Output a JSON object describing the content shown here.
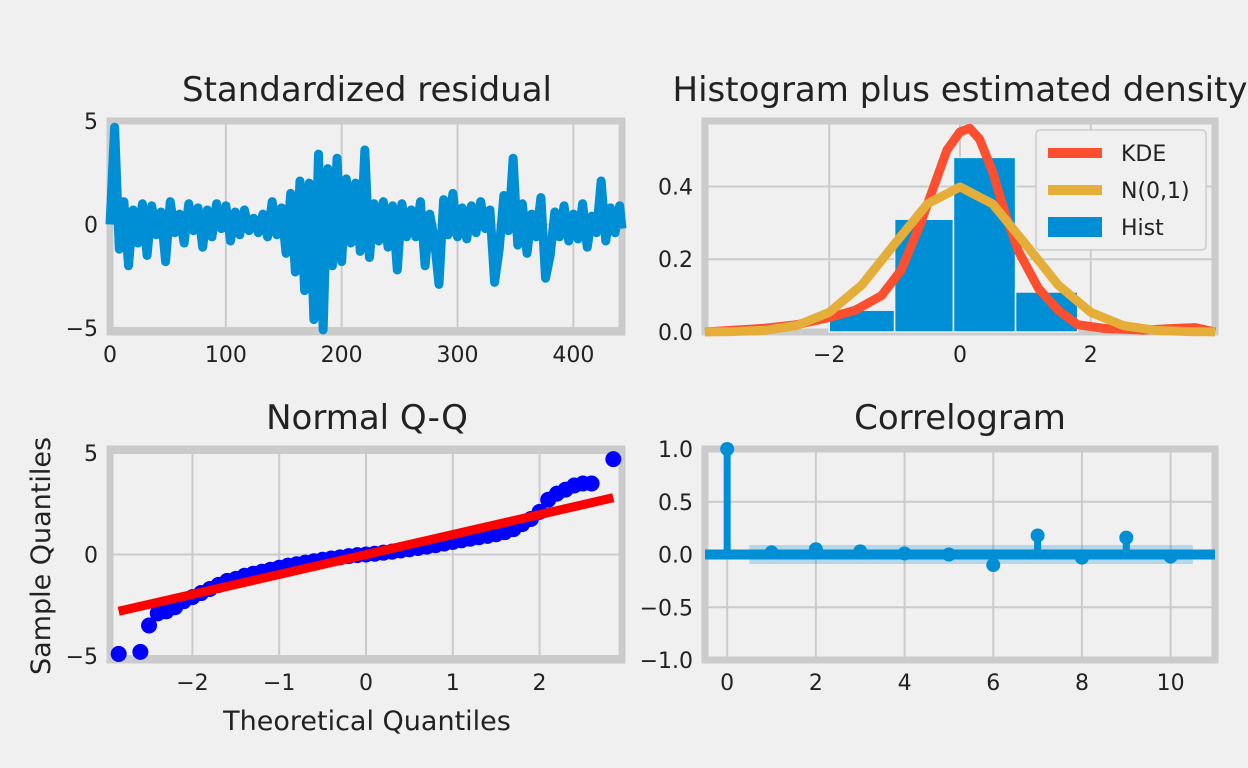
{
  "chart_data": [
    {
      "type": "line",
      "title": "Standardized residual",
      "xlabel": "",
      "ylabel": "",
      "xlim": [
        0,
        442
      ],
      "ylim": [
        -5.2,
        5.0
      ],
      "xticks": [
        0,
        100,
        200,
        300,
        400
      ],
      "yticks": [
        -5,
        0,
        5
      ],
      "grid": true,
      "color": "#008fd5",
      "series": [
        {
          "x": [
            0,
            4,
            8,
            12,
            16,
            20,
            24,
            28,
            32,
            36,
            40,
            44,
            48,
            52,
            56,
            60,
            64,
            68,
            72,
            76,
            80,
            84,
            88,
            92,
            96,
            100,
            104,
            108,
            112,
            116,
            120,
            124,
            128,
            132,
            136,
            140,
            144,
            148,
            152,
            156,
            160,
            164,
            168,
            172,
            176,
            180,
            184,
            188,
            192,
            196,
            200,
            204,
            208,
            212,
            216,
            220,
            224,
            228,
            232,
            236,
            240,
            244,
            248,
            252,
            256,
            260,
            264,
            268,
            272,
            276,
            280,
            284,
            288,
            292,
            296,
            300,
            304,
            308,
            312,
            316,
            320,
            324,
            328,
            332,
            336,
            340,
            344,
            348,
            352,
            356,
            360,
            364,
            368,
            372,
            376,
            380,
            384,
            388,
            392,
            396,
            400,
            404,
            408,
            412,
            416,
            420,
            424,
            428,
            432,
            436,
            440,
            442
          ],
          "values": [
            0,
            4.7,
            -1.2,
            1.1,
            -2,
            0.7,
            -0.9,
            1.0,
            -1.5,
            0.9,
            -0.5,
            0.6,
            -1.8,
            1.1,
            -0.4,
            0.5,
            -0.9,
            1.0,
            -0.3,
            0.8,
            -1.1,
            0.7,
            -0.6,
            1.0,
            -0.2,
            0.9,
            -0.8,
            0.6,
            -0.5,
            0.7,
            -0.3,
            0.3,
            -0.4,
            0.5,
            -0.6,
            1.1,
            -0.5,
            0.8,
            -1.4,
            1.5,
            -2.3,
            2.1,
            -3.2,
            2.0,
            -4.6,
            3.4,
            -5.1,
            2.7,
            -2.0,
            3.2,
            -1.8,
            2.2,
            -0.9,
            2.0,
            -1.3,
            3.6,
            -1.6,
            1.0,
            -0.8,
            1.1,
            -1.1,
            0.9,
            -2.2,
            1.0,
            -0.6,
            0.7,
            -0.6,
            1.1,
            -2.0,
            0.5,
            -0.7,
            -2.9,
            1.2,
            -0.5,
            1.5,
            -0.6,
            0.8,
            -0.7,
            0.9,
            -0.4,
            1.1,
            -0.2,
            0.7,
            -2.8,
            -1.2,
            1.4,
            -0.3,
            3.2,
            -1.0,
            1.0,
            -1.4,
            0.5,
            -0.6,
            1.3,
            -2.6,
            -1.5,
            0.6,
            -0.6,
            0.9,
            -0.8,
            0.5,
            -0.7,
            1.0,
            -1.1,
            0.4,
            -0.4,
            2.1,
            -0.8,
            0.8,
            -0.4,
            0.9,
            -0.2
          ]
        }
      ]
    },
    {
      "type": "bar",
      "title": "Histogram plus estimated density",
      "xlabel": "",
      "ylabel": "",
      "xlim": [
        -3.9,
        3.9
      ],
      "ylim": [
        0,
        0.58
      ],
      "xticks": [
        -2,
        0,
        2
      ],
      "yticks": [
        0.0,
        0.2,
        0.4
      ],
      "ytick_labels": [
        "0.0",
        "0.2",
        "0.4"
      ],
      "grid": true,
      "legend_position": "top-right",
      "bins": [
        {
          "x0": -2.0,
          "x1": -1.0,
          "value": 0.06
        },
        {
          "x0": -1.0,
          "x1": -0.1,
          "value": 0.31
        },
        {
          "x0": -0.1,
          "x1": 0.85,
          "value": 0.48
        },
        {
          "x0": 0.85,
          "x1": 1.8,
          "value": 0.11
        }
      ],
      "series": [
        {
          "name": "KDE",
          "color": "#fc4f30",
          "x": [
            -3.9,
            -3.0,
            -2.5,
            -2.0,
            -1.6,
            -1.2,
            -0.9,
            -0.6,
            -0.4,
            -0.2,
            0.0,
            0.15,
            0.3,
            0.5,
            0.7,
            0.9,
            1.2,
            1.5,
            1.8,
            2.2,
            2.8,
            3.3,
            3.6,
            3.9
          ],
          "values": [
            0.0,
            0.01,
            0.02,
            0.04,
            0.06,
            0.1,
            0.17,
            0.3,
            0.4,
            0.5,
            0.55,
            0.56,
            0.53,
            0.44,
            0.32,
            0.22,
            0.12,
            0.06,
            0.02,
            0.01,
            0.005,
            0.01,
            0.012,
            0.0
          ]
        },
        {
          "name": "N(0,1)",
          "color": "#e5ae38",
          "x": [
            -3.9,
            -3.5,
            -3.0,
            -2.5,
            -2.0,
            -1.5,
            -1.0,
            -0.5,
            0.0,
            0.5,
            1.0,
            1.5,
            2.0,
            2.5,
            3.0,
            3.5,
            3.9
          ],
          "values": [
            0.0002,
            0.0009,
            0.0044,
            0.0175,
            0.054,
            0.1295,
            0.242,
            0.352,
            0.399,
            0.352,
            0.242,
            0.1295,
            0.054,
            0.0175,
            0.0044,
            0.0009,
            0.0002
          ]
        },
        {
          "name": "Hist",
          "color": "#008fd5"
        }
      ]
    },
    {
      "type": "scatter",
      "title": "Normal Q-Q",
      "xlabel": "Theoretical Quantiles",
      "ylabel": "Sample Quantiles",
      "xlim": [
        -2.95,
        2.95
      ],
      "ylim": [
        -5.2,
        5.2
      ],
      "xticks": [
        -2,
        -1,
        0,
        1,
        2
      ],
      "yticks": [
        -5,
        0,
        5
      ],
      "grid": true,
      "marker_color": "#0000ff",
      "line_color": "#ff0000",
      "reference_line": {
        "x": [
          -2.85,
          2.85
        ],
        "y": [
          -2.8,
          2.8
        ]
      },
      "points": {
        "x": [
          -2.85,
          -2.6,
          -2.5,
          -2.4,
          -2.3,
          -2.2,
          -2.1,
          -2.0,
          -1.9,
          -1.8,
          -1.7,
          -1.6,
          -1.5,
          -1.4,
          -1.3,
          -1.2,
          -1.1,
          -1.0,
          -0.9,
          -0.8,
          -0.7,
          -0.6,
          -0.5,
          -0.4,
          -0.3,
          -0.2,
          -0.1,
          0.0,
          0.1,
          0.2,
          0.3,
          0.4,
          0.5,
          0.6,
          0.7,
          0.8,
          0.9,
          1.0,
          1.1,
          1.2,
          1.3,
          1.4,
          1.5,
          1.6,
          1.7,
          1.8,
          1.9,
          2.0,
          2.1,
          2.2,
          2.3,
          2.4,
          2.5,
          2.6,
          2.85
        ],
        "y": [
          -4.9,
          -4.8,
          -3.5,
          -2.9,
          -2.8,
          -2.6,
          -2.3,
          -2.1,
          -1.9,
          -1.7,
          -1.5,
          -1.3,
          -1.2,
          -1.05,
          -0.95,
          -0.85,
          -0.75,
          -0.65,
          -0.55,
          -0.48,
          -0.4,
          -0.33,
          -0.26,
          -0.2,
          -0.14,
          -0.08,
          -0.03,
          0.0,
          0.04,
          0.09,
          0.14,
          0.2,
          0.26,
          0.32,
          0.39,
          0.46,
          0.54,
          0.62,
          0.7,
          0.78,
          0.85,
          0.92,
          1.0,
          1.1,
          1.25,
          1.5,
          1.75,
          2.1,
          2.7,
          3.0,
          3.2,
          3.4,
          3.5,
          3.5,
          4.7
        ]
      }
    },
    {
      "type": "bar",
      "title": "Correlogram",
      "xlabel": "",
      "ylabel": "",
      "xlim": [
        -0.5,
        11
      ],
      "ylim": [
        -1.0,
        1.0
      ],
      "xticks": [
        0,
        2,
        4,
        6,
        8,
        10
      ],
      "yticks": [
        -1.0,
        -0.5,
        0.0,
        0.5,
        1.0
      ],
      "ytick_labels": [
        "−1.0",
        "−0.5",
        "0.0",
        "0.5",
        "1.0"
      ],
      "grid": true,
      "color": "#008fd5",
      "confidence_band": {
        "x0": 0.5,
        "x1": 10.5,
        "lower": -0.09,
        "upper": 0.09
      },
      "lags": [
        0,
        1,
        2,
        3,
        4,
        5,
        6,
        7,
        8,
        9,
        10
      ],
      "values": [
        1.0,
        0.02,
        0.05,
        0.03,
        0.01,
        0.0,
        -0.1,
        0.18,
        -0.03,
        0.16,
        -0.02
      ]
    }
  ]
}
